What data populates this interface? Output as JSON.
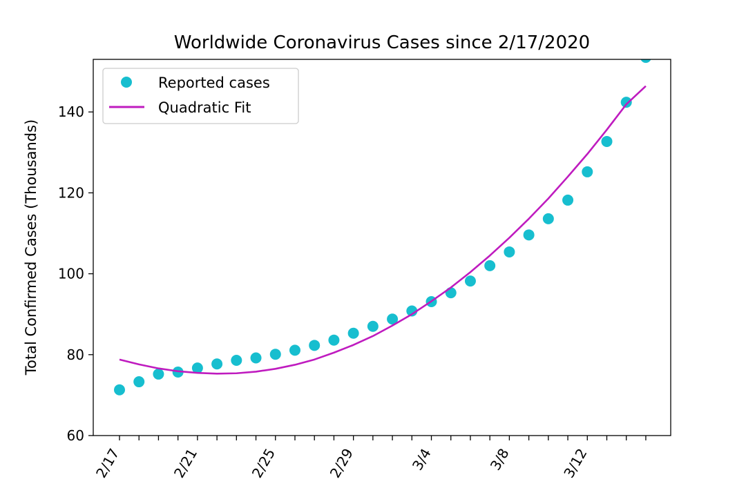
{
  "chart_data": {
    "type": "scatter",
    "title": "Worldwide Coronavirus Cases since 2/17/2020",
    "xlabel": "",
    "ylabel": "Total Confirmed Cases (Thousands)",
    "ylim": [
      60,
      153
    ],
    "yticks": [
      60,
      80,
      100,
      120,
      140
    ],
    "x_start": "2/17",
    "x_end": "3/15",
    "xtick_labels": [
      "2/17",
      "2/21",
      "2/25",
      "2/29",
      "3/4",
      "3/8",
      "3/12"
    ],
    "legend_position": "upper-left",
    "series": [
      {
        "name": "Reported cases",
        "kind": "markers",
        "color": "#17becf",
        "dates": [
          "2/17",
          "2/18",
          "2/19",
          "2/20",
          "2/21",
          "2/22",
          "2/23",
          "2/24",
          "2/25",
          "2/26",
          "2/27",
          "2/28",
          "2/29",
          "3/1",
          "3/2",
          "3/3",
          "3/4",
          "3/5",
          "3/6",
          "3/7",
          "3/8",
          "3/9",
          "3/10",
          "3/11",
          "3/12",
          "3/13",
          "3/14",
          "3/15"
        ],
        "values": [
          71.3,
          73.3,
          75.2,
          75.7,
          76.7,
          77.7,
          78.6,
          79.2,
          80.1,
          81.1,
          82.3,
          83.6,
          85.3,
          87.0,
          88.8,
          90.8,
          93.1,
          95.3,
          98.2,
          102.0,
          105.4,
          109.6,
          113.6,
          118.2,
          125.2,
          132.7,
          142.4,
          153.5
        ]
      },
      {
        "name": "Quadratic Fit",
        "kind": "line",
        "color": "#bf1bbf",
        "dates": [
          "2/17",
          "2/18",
          "2/19",
          "2/20",
          "2/21",
          "2/22",
          "2/23",
          "2/24",
          "2/25",
          "2/26",
          "2/27",
          "2/28",
          "2/29",
          "3/1",
          "3/2",
          "3/3",
          "3/4",
          "3/5",
          "3/6",
          "3/7",
          "3/8",
          "3/9",
          "3/10",
          "3/11",
          "3/12",
          "3/13",
          "3/14",
          "3/15"
        ],
        "values": [
          78.8,
          77.6,
          76.6,
          75.9,
          75.5,
          75.3,
          75.4,
          75.8,
          76.5,
          77.5,
          78.8,
          80.5,
          82.4,
          84.6,
          87.2,
          90.0,
          93.2,
          96.6,
          100.4,
          104.5,
          108.9,
          113.6,
          118.6,
          124.0,
          129.6,
          135.6,
          141.9,
          146.4
        ]
      }
    ]
  }
}
